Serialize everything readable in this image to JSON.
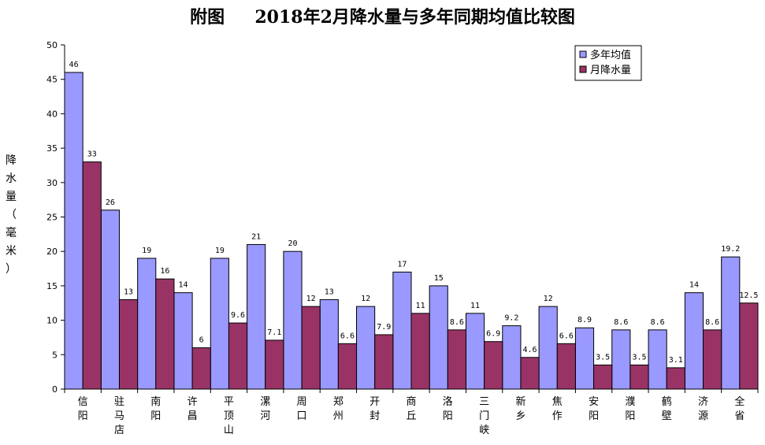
{
  "chart_data": {
    "type": "bar",
    "title": "附图     2018年2月降水量与多年同期均值比较图",
    "ylabel": "降水量（毫米）",
    "xlabel": "",
    "ylim": [
      0,
      50
    ],
    "yticks": [
      0,
      5,
      10,
      15,
      20,
      25,
      30,
      35,
      40,
      45,
      50
    ],
    "grid": false,
    "legend_position": "top-right",
    "categories": [
      "信阳",
      "驻马店",
      "南阳",
      "许昌",
      "平顶山",
      "漯河",
      "周口",
      "郑州",
      "开封",
      "商丘",
      "洛阳",
      "三门峡",
      "新乡",
      "焦作",
      "安阳",
      "濮阳",
      "鹤壁",
      "济源",
      "全省"
    ],
    "series": [
      {
        "name": "多年均值",
        "color": "#9999ff",
        "values": [
          46,
          26,
          19,
          14,
          19,
          21,
          20,
          13,
          12,
          17,
          15,
          11,
          9.2,
          12,
          8.9,
          8.6,
          8.6,
          14,
          19.2
        ],
        "labels": [
          "46",
          "26",
          "19",
          "14",
          "19",
          "21",
          "20",
          "13",
          "12",
          "17",
          "15",
          "11",
          "9.2",
          "12",
          "8.9",
          "8.6",
          "8.6",
          "14",
          "19.2"
        ]
      },
      {
        "name": "月降水量",
        "color": "#993366",
        "values": [
          33,
          13,
          16,
          6,
          9.6,
          7.1,
          12,
          6.6,
          7.9,
          11,
          8.6,
          6.9,
          4.6,
          6.6,
          3.5,
          3.5,
          3.1,
          8.6,
          12.5
        ],
        "labels": [
          "33",
          "13",
          "16",
          "6",
          "9.6",
          "7.1",
          "12",
          "6.6",
          "7.9",
          "11",
          "8.6",
          "6.9",
          "4.6",
          "6.6",
          "3.5",
          "3.5",
          "3.1",
          "8.6",
          "12.5"
        ]
      }
    ]
  }
}
